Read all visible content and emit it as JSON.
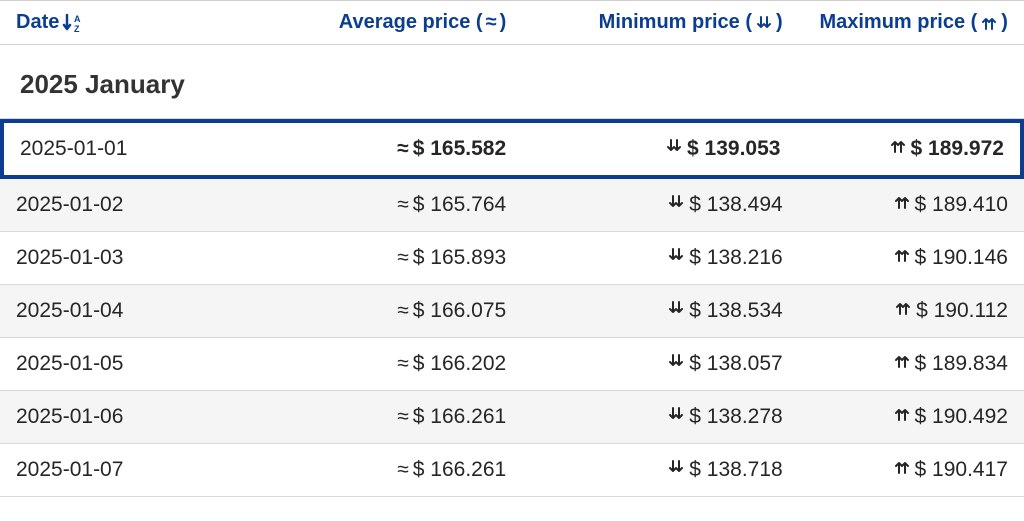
{
  "table": {
    "headers": {
      "date": "Date",
      "average": "Average price (",
      "average_close": ")",
      "minimum": "Minimum price (",
      "minimum_close": ")",
      "maximum": "Maximum price (",
      "maximum_close": ")"
    },
    "month_label": "2025 January",
    "symbols": {
      "approx": "≈",
      "down": "⇊",
      "up": "⇈",
      "sort_az": "A Z"
    },
    "columns": {
      "date_width": "31%",
      "avg_width": "20%",
      "min_width": "27%",
      "max_width": "22%"
    },
    "rows": [
      {
        "date": "2025-01-01",
        "avg": "$ 165.582",
        "min": "$ 139.053",
        "max": "$ 189.972",
        "highlighted": true
      },
      {
        "date": "2025-01-02",
        "avg": "$ 165.764",
        "min": "$ 138.494",
        "max": "$ 189.410",
        "highlighted": false
      },
      {
        "date": "2025-01-03",
        "avg": "$ 165.893",
        "min": "$ 138.216",
        "max": "$ 190.146",
        "highlighted": false
      },
      {
        "date": "2025-01-04",
        "avg": "$ 166.075",
        "min": "$ 138.534",
        "max": "$ 190.112",
        "highlighted": false
      },
      {
        "date": "2025-01-05",
        "avg": "$ 166.202",
        "min": "$ 138.057",
        "max": "$ 189.834",
        "highlighted": false
      },
      {
        "date": "2025-01-06",
        "avg": "$ 166.261",
        "min": "$ 138.278",
        "max": "$ 190.492",
        "highlighted": false
      },
      {
        "date": "2025-01-07",
        "avg": "$ 166.261",
        "min": "$ 138.718",
        "max": "$ 190.417",
        "highlighted": false
      }
    ],
    "colors": {
      "header_text": "#0b3e91",
      "row_alt_bg": "#f5f5f5",
      "border": "#d8d8d8",
      "highlight_border": "#0b3e91",
      "text": "#262626"
    }
  }
}
